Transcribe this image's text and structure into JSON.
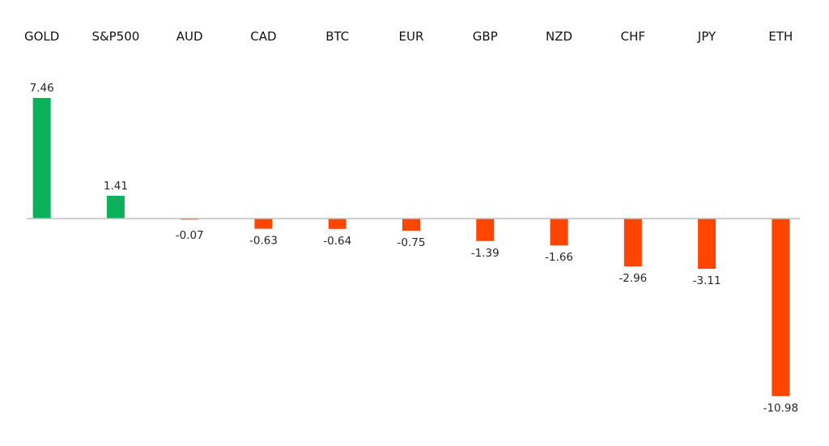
{
  "chart_data": {
    "type": "bar",
    "categories": [
      "GOLD",
      "S&P500",
      "AUD",
      "CAD",
      "BTC",
      "EUR",
      "GBP",
      "NZD",
      "CHF",
      "JPY",
      "ETH"
    ],
    "values": [
      7.46,
      1.41,
      -0.07,
      -0.63,
      -0.64,
      -0.75,
      -1.39,
      -1.66,
      -2.96,
      -3.11,
      -10.98
    ],
    "value_labels": [
      "7.46",
      "1.41",
      "-0.07",
      "-0.63",
      "-0.64",
      "-0.75",
      "-1.39",
      "-1.66",
      "-2.96",
      "-3.11",
      "-10.98"
    ],
    "title": "",
    "xlabel": "",
    "ylabel": "",
    "ylim": [
      -10.98,
      7.46
    ],
    "grid": false,
    "legend": "none",
    "category_axis_position": "top",
    "colors": {
      "positive": "#0bb05a",
      "negative": "#ff4500",
      "axis": "#bfbfbf"
    }
  }
}
